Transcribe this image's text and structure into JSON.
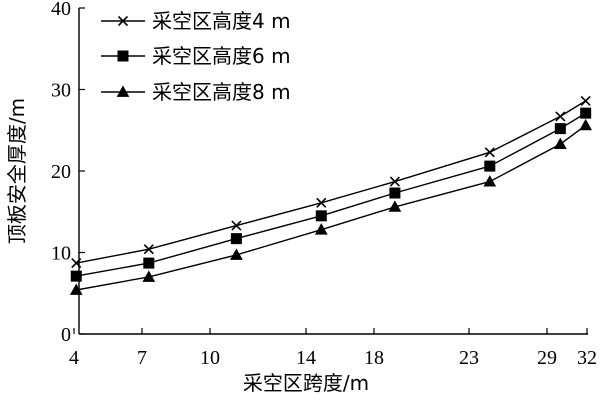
{
  "chart_data": {
    "type": "line",
    "title": "",
    "xlabel": "采空区跨度/m",
    "ylabel": "顶板安全厚度/m",
    "x": [
      4,
      7,
      10,
      14,
      18,
      23,
      29,
      32
    ],
    "x_tick_labels": [
      "4",
      "7",
      "10",
      "14",
      "18",
      "23",
      "29",
      "32"
    ],
    "ylim": [
      0,
      40
    ],
    "y_ticks": [
      0,
      10,
      20,
      30,
      40
    ],
    "grid": false,
    "legend_position": "top-left",
    "series": [
      {
        "name": "采空区高度4 m",
        "marker": "x",
        "x": [
          4.1,
          7.3,
          11.1,
          14.9,
          19.1,
          24.6,
          30.0,
          31.9
        ],
        "values": [
          8.7,
          10.4,
          13.3,
          16.1,
          18.7,
          22.3,
          26.7,
          28.6
        ]
      },
      {
        "name": "采空区高度6 m",
        "marker": "square",
        "x": [
          4.1,
          7.3,
          11.1,
          14.9,
          19.1,
          24.6,
          30.0,
          31.9
        ],
        "values": [
          7.1,
          8.7,
          11.7,
          14.5,
          17.3,
          20.6,
          25.2,
          27.1
        ]
      },
      {
        "name": "采空区高度8 m",
        "marker": "triangle",
        "x": [
          4.1,
          7.3,
          11.1,
          14.9,
          19.1,
          24.6,
          30.0,
          31.9
        ],
        "values": [
          5.4,
          7.0,
          9.7,
          12.8,
          15.6,
          18.7,
          23.3,
          25.6
        ]
      }
    ]
  }
}
